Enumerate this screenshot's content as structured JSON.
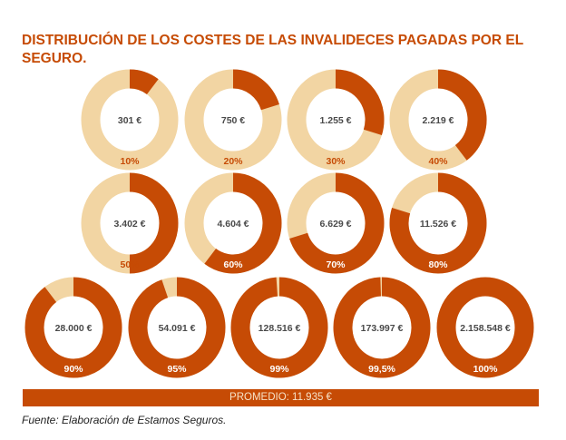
{
  "chart_data": {
    "type": "donut",
    "title": "DISTRIBUCIÓN DE LOS COSTES DE LAS INVALIDECES PAGADAS POR EL SEGURO.",
    "colors": {
      "share": "#c64b05",
      "remainder": "#f2d5a3"
    },
    "items": [
      {
        "value_label": "301 €",
        "percent_label": "10%",
        "fraction": 0.1
      },
      {
        "value_label": "750 €",
        "percent_label": "20%",
        "fraction": 0.2
      },
      {
        "value_label": "1.255  €",
        "percent_label": "30%",
        "fraction": 0.3
      },
      {
        "value_label": "2.219 €",
        "percent_label": "40%",
        "fraction": 0.4
      },
      {
        "value_label": "3.402 €",
        "percent_label": "50%",
        "fraction": 0.5
      },
      {
        "value_label": "4.604 €",
        "percent_label": "60%",
        "fraction": 0.6
      },
      {
        "value_label": "6.629 €",
        "percent_label": "70%",
        "fraction": 0.7
      },
      {
        "value_label": "11.526 €",
        "percent_label": "80%",
        "fraction": 0.8
      },
      {
        "value_label": "28.000 €",
        "percent_label": "90%",
        "fraction": 0.9
      },
      {
        "value_label": "54.091 €",
        "percent_label": "95%",
        "fraction": 0.95
      },
      {
        "value_label": "128.516 €",
        "percent_label": "99%",
        "fraction": 0.99
      },
      {
        "value_label": "173.997 €",
        "percent_label": "99,5%",
        "fraction": 0.995
      },
      {
        "value_label": "2.158.548 €",
        "percent_label": "100%",
        "fraction": 1.0
      }
    ],
    "average_label": "PROMEDIO: 11.935 €",
    "source": "Fuente: Elaboración de Estamos Seguros."
  }
}
